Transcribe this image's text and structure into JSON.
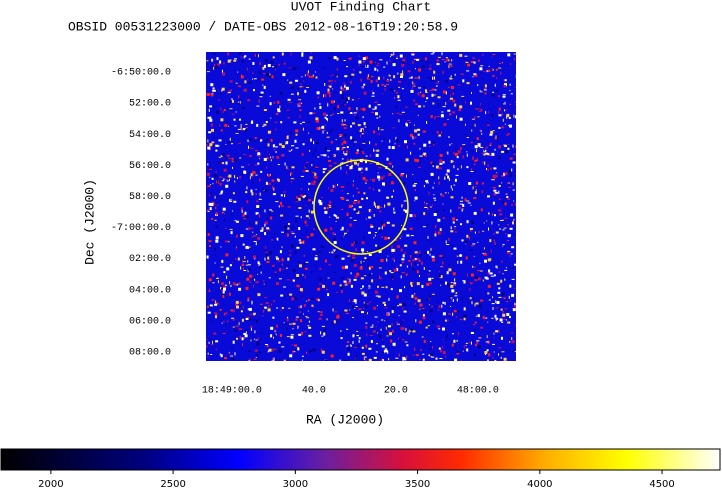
{
  "chart_data": {
    "type": "image",
    "title": "UVOT Finding Chart",
    "subtitle": "OBSID 00531223000 / DATE-OBS 2012-08-16T19:20:58.9",
    "xlabel": "RA (J2000)",
    "ylabel": "Dec (J2000)",
    "xlim": [
      67746.3,
      67670.7
    ],
    "xticks": [
      {
        "value": 67740,
        "label": "18:49:00.0"
      },
      {
        "value": 67720,
        "label": "40.0"
      },
      {
        "value": 67700,
        "label": "20.0"
      },
      {
        "value": 67680,
        "label": "48:00.0"
      }
    ],
    "ylim": [
      -7.143,
      -6.812
    ],
    "yticks": [
      {
        "value": -6.8333,
        "label": "-6:50:00.0"
      },
      {
        "value": -6.8667,
        "label": "52:00.0"
      },
      {
        "value": -6.9,
        "label": "54:00.0"
      },
      {
        "value": -6.9333,
        "label": "56:00.0"
      },
      {
        "value": -6.9667,
        "label": "58:00.0"
      },
      {
        "value": -7.0,
        "label": "-7:00:00.0"
      },
      {
        "value": -7.0333,
        "label": "02:00.0"
      },
      {
        "value": -7.0667,
        "label": "04:00.0"
      },
      {
        "value": -7.1,
        "label": "06:00.0"
      },
      {
        "value": -7.1333,
        "label": "08:00.0"
      }
    ],
    "colorbar": {
      "lim": [
        1796,
        4737
      ],
      "ticks": [
        2000,
        2500,
        3000,
        3500,
        4000,
        4500
      ]
    }
  }
}
